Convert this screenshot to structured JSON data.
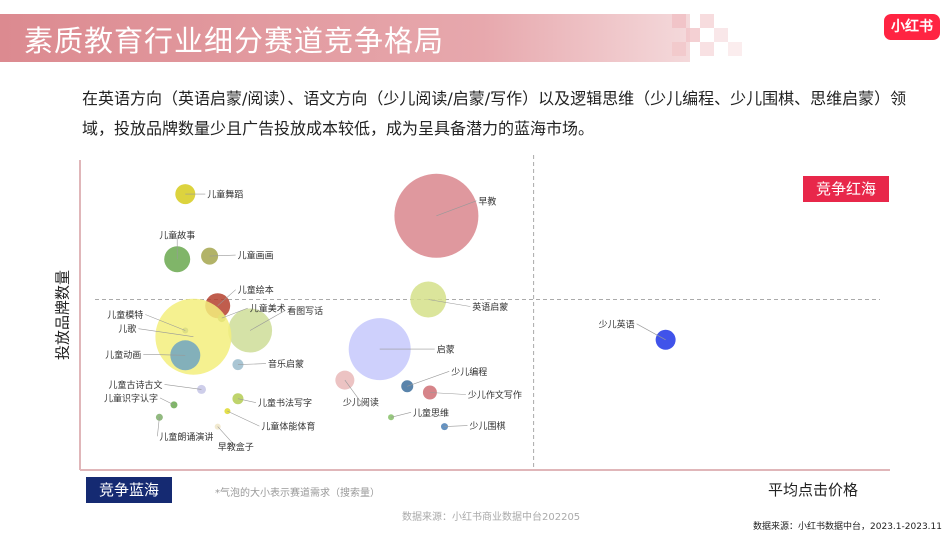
{
  "title": "素质教育行业细分赛道竞争格局",
  "brand": "小红书",
  "description": "在英语方向（英语启蒙/阅读）、语文方向（少儿阅读/启蒙/写作）以及逻辑思维（少儿编程、少儿围棋、思维启蒙）领域，投放品牌数量少且广告投放成本较低，成为呈具备潜力的蓝海市场。",
  "note": "*气泡的大小表示赛道需求（搜索量）",
  "source_inner": "数据来源：小红书商业数据中台202205",
  "source_outer": "数据来源：小红书数据中台，2023.1-2023.11",
  "colors": {
    "brand": "#ff2442",
    "red_quadrant": "#e8274a",
    "blue_quadrant": "#152a72",
    "title_band": "#dc8a90"
  },
  "chart_data": {
    "type": "scatter",
    "variant": "bubble",
    "xlabel": "平均点击价格",
    "ylabel": "投放品牌数量",
    "quadrant_labels": {
      "top_right": "竞争红海",
      "bottom_left": "竞争蓝海"
    },
    "divider_x": 0.56,
    "divider_y": 0.55,
    "xlim": [
      0,
      1
    ],
    "ylim": [
      0,
      1
    ],
    "grid": false,
    "points": [
      {
        "label": "早教",
        "x": 0.44,
        "y": 0.82,
        "size": 42,
        "color": "#d9868d"
      },
      {
        "label": "儿童舞蹈",
        "x": 0.13,
        "y": 0.89,
        "size": 10,
        "color": "#d6cb1c"
      },
      {
        "label": "儿童故事",
        "x": 0.12,
        "y": 0.68,
        "size": 13,
        "color": "#6aa84f"
      },
      {
        "label": "儿童画画",
        "x": 0.16,
        "y": 0.69,
        "size": 8.5,
        "color": "#a4a64e"
      },
      {
        "label": "儿童绘本",
        "x": 0.17,
        "y": 0.53,
        "size": 12.5,
        "color": "#b5412e"
      },
      {
        "label": "儿童美术",
        "x": 0.175,
        "y": 0.49,
        "size": 4,
        "color": "#8a9a4a"
      },
      {
        "label": "看图写话",
        "x": 0.21,
        "y": 0.45,
        "size": 22,
        "color": "#cedd98"
      },
      {
        "label": "儿童模特",
        "x": 0.13,
        "y": 0.45,
        "size": 3,
        "color": "#4a6ea3"
      },
      {
        "label": "儿歌",
        "x": 0.14,
        "y": 0.43,
        "size": 38,
        "color": "#f3ee7d"
      },
      {
        "label": "儿童动画",
        "x": 0.13,
        "y": 0.37,
        "size": 15,
        "color": "#6fa5c2"
      },
      {
        "label": "音乐启蒙",
        "x": 0.195,
        "y": 0.34,
        "size": 5.5,
        "color": "#9bbccc"
      },
      {
        "label": "儿童古诗古文",
        "x": 0.15,
        "y": 0.26,
        "size": 4.5,
        "color": "#c6c6e6"
      },
      {
        "label": "儿童识字认字",
        "x": 0.116,
        "y": 0.21,
        "size": 3.5,
        "color": "#6aa84f"
      },
      {
        "label": "儿童书法写字",
        "x": 0.195,
        "y": 0.23,
        "size": 5.5,
        "color": "#b4cd52"
      },
      {
        "label": "儿童体能体育",
        "x": 0.182,
        "y": 0.19,
        "size": 3,
        "color": "#ded92c"
      },
      {
        "label": "儿童朗诵演讲",
        "x": 0.098,
        "y": 0.17,
        "size": 3.5,
        "color": "#7fae6a"
      },
      {
        "label": "早教盒子",
        "x": 0.17,
        "y": 0.14,
        "size": 3,
        "color": "#f0e6c8"
      },
      {
        "label": "英语启蒙",
        "x": 0.43,
        "y": 0.55,
        "size": 18,
        "color": "#d5e189"
      },
      {
        "label": "启蒙",
        "x": 0.37,
        "y": 0.39,
        "size": 31,
        "color": "#c6c8fb"
      },
      {
        "label": "少儿阅读",
        "x": 0.327,
        "y": 0.29,
        "size": 9.5,
        "color": "#e9b9b9"
      },
      {
        "label": "少儿编程",
        "x": 0.404,
        "y": 0.27,
        "size": 6,
        "color": "#3d6f9c"
      },
      {
        "label": "少儿作文写作",
        "x": 0.432,
        "y": 0.25,
        "size": 7,
        "color": "#cf6e74"
      },
      {
        "label": "儿童思维",
        "x": 0.384,
        "y": 0.17,
        "size": 3,
        "color": "#85c066"
      },
      {
        "label": "少儿围棋",
        "x": 0.45,
        "y": 0.14,
        "size": 3.5,
        "color": "#4a7fb5"
      },
      {
        "label": "少儿英语",
        "x": 0.723,
        "y": 0.42,
        "size": 10,
        "color": "#1e35e6"
      }
    ]
  }
}
